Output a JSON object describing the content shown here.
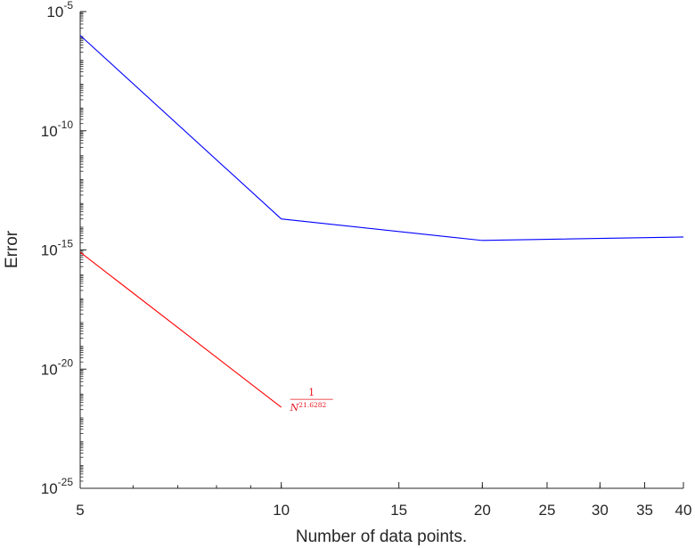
{
  "chart_data": {
    "type": "line",
    "xlabel": "Number of data points.",
    "ylabel": "Error",
    "xscale": "log",
    "yscale": "log",
    "xlim": [
      5,
      40
    ],
    "ylim": [
      1e-25,
      1e-05
    ],
    "grid": false,
    "x_ticks": [
      {
        "value": 5,
        "label": "5"
      },
      {
        "value": 10,
        "label": "10"
      },
      {
        "value": 15,
        "label": "15"
      },
      {
        "value": 20,
        "label": "20"
      },
      {
        "value": 25,
        "label": "25"
      },
      {
        "value": 30,
        "label": "30"
      },
      {
        "value": 35,
        "label": "35"
      },
      {
        "value": 40,
        "label": "40"
      }
    ],
    "y_ticks": [
      {
        "value": 1e-25,
        "base": "10",
        "exp": "-25"
      },
      {
        "value": 1e-20,
        "base": "10",
        "exp": "-20"
      },
      {
        "value": 1e-15,
        "base": "10",
        "exp": "-15"
      },
      {
        "value": 1e-10,
        "base": "10",
        "exp": "-10"
      },
      {
        "value": 1e-05,
        "base": "10",
        "exp": "-5"
      }
    ],
    "series": [
      {
        "color": "#0000ff",
        "x": [
          5,
          10,
          20,
          40
        ],
        "y": [
          1e-06,
          2e-14,
          2.5e-15,
          3.5e-15
        ]
      },
      {
        "color": "#ff0000",
        "x": [
          5,
          10
        ],
        "y": [
          8e-16,
          2.5e-22
        ]
      }
    ],
    "annotation": {
      "numerator": "1",
      "base": "N",
      "exponent": "21.6282",
      "color": "#e8141e",
      "x": 10,
      "y": 2.5e-22
    }
  }
}
